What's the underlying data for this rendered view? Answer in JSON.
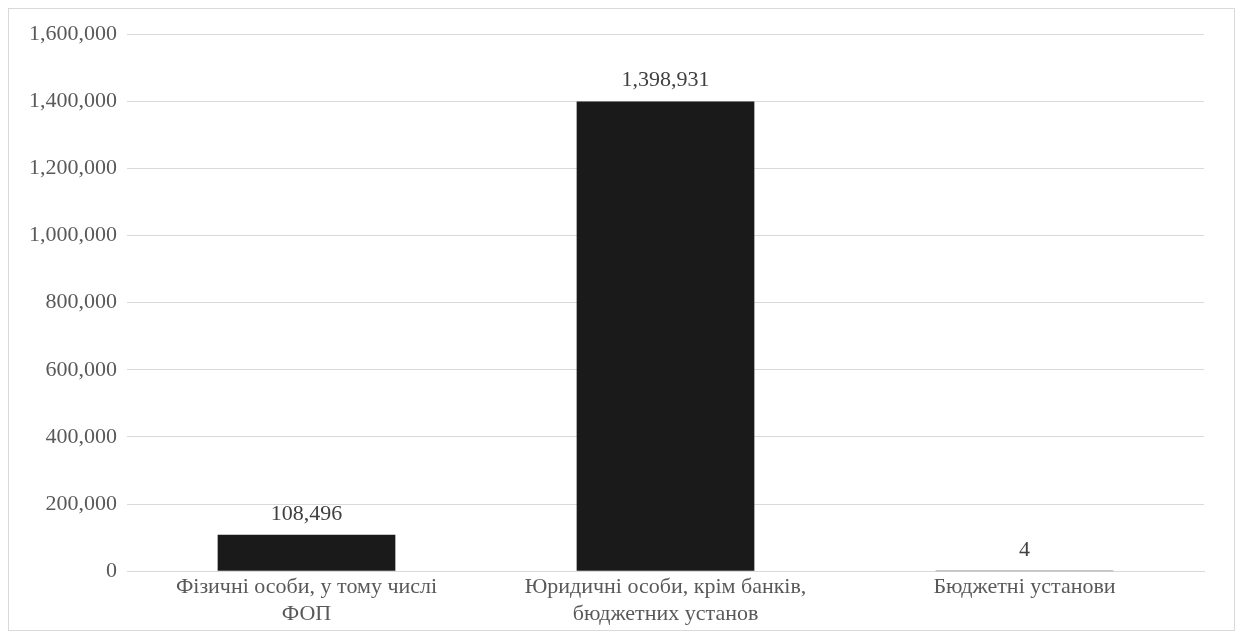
{
  "chart_data": {
    "type": "bar",
    "categories": [
      "Фізичні особи, у тому числі ФОП",
      "Юридичні особи, крім банків, бюджетних установ",
      "Бюджетні установи"
    ],
    "values": [
      108496,
      1398931,
      4
    ],
    "value_labels": [
      "108,496",
      "1,398,931",
      "4"
    ],
    "color": "#1a1a1a",
    "ylim": [
      0,
      1600000
    ],
    "yticks": [
      0,
      {
        "value": 200000,
        "label": "200,000"
      },
      {
        "value": 400000,
        "label": "400,000"
      },
      {
        "value": 600000,
        "label": "600,000"
      },
      {
        "value": 800000,
        "label": "800,000"
      },
      {
        "value": 1000000,
        "label": "1,000,000"
      },
      {
        "value": 1200000,
        "label": "1,200,000"
      },
      {
        "value": 1400000,
        "label": "1,400,000"
      },
      {
        "value": 1600000,
        "label": "1,600,000"
      }
    ],
    "grid": "y",
    "legend": false
  }
}
